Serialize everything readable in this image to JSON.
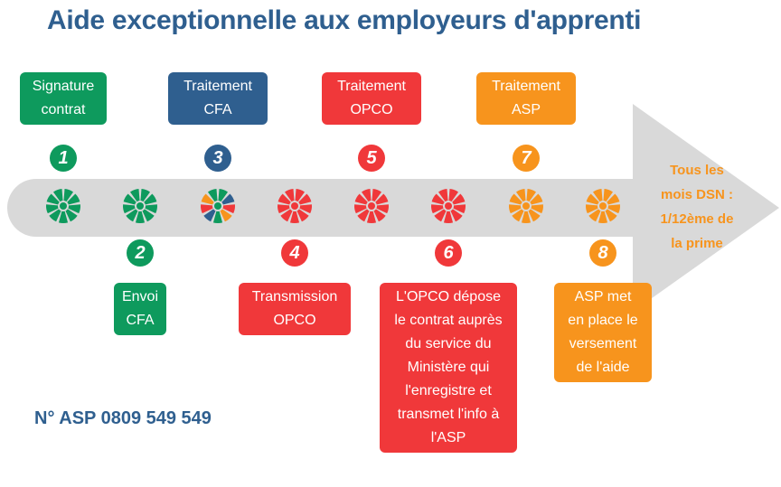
{
  "title": "Aide exceptionnelle aux employeurs d'apprenti",
  "colors": {
    "green": "#0e9a5d",
    "blue": "#2f5f8f",
    "red": "#f0383a",
    "orange": "#f7941d",
    "arrow": "#d9d9d9"
  },
  "steps": [
    {
      "number": "1",
      "label": "Signature\ncontrat",
      "color": "green"
    },
    {
      "number": "2",
      "label": "Envoi\nCFA",
      "color": "green"
    },
    {
      "number": "3",
      "label": "Traitement\nCFA",
      "color": "blue"
    },
    {
      "number": "4",
      "label": "Transmission\nOPCO",
      "color": "red"
    },
    {
      "number": "5",
      "label": "Traitement\nOPCO",
      "color": "red"
    },
    {
      "number": "6",
      "label": "L'OPCO dépose\nle contrat auprès\ndu service du\nMinistère qui\nl'enregistre et\ntransmet l'info à\nl'ASP",
      "color": "red"
    },
    {
      "number": "7",
      "label": "Traitement\nASP",
      "color": "orange"
    },
    {
      "number": "8",
      "label": "ASP met\nen place le\nversement\nde l'aide",
      "color": "orange"
    }
  ],
  "final_text": "Tous les\nmois DSN :\n1/12ème de\nla prime",
  "phone": "N° ASP 0809 549 549"
}
